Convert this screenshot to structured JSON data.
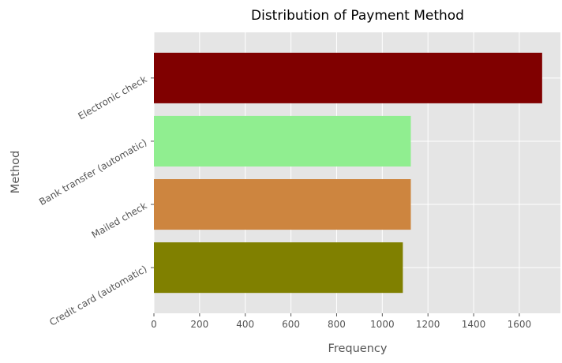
{
  "chart_data": {
    "type": "bar",
    "orientation": "horizontal",
    "title": "Distribution of Payment Method",
    "xlabel": "Frequency",
    "ylabel": "Method",
    "categories": [
      "Electronic check",
      "Bank transfer (automatic)",
      "Mailed check",
      "Credit card (automatic)"
    ],
    "values": [
      1700,
      1125,
      1125,
      1090
    ],
    "colors": [
      "#800000",
      "#90ee90",
      "#cd853f",
      "#808000"
    ],
    "xlim": [
      0,
      1780
    ],
    "xticks": [
      0,
      200,
      400,
      600,
      800,
      1000,
      1200,
      1400,
      1600
    ],
    "grid": true,
    "background": "#e5e5e5",
    "grid_color": "#ffffff"
  }
}
